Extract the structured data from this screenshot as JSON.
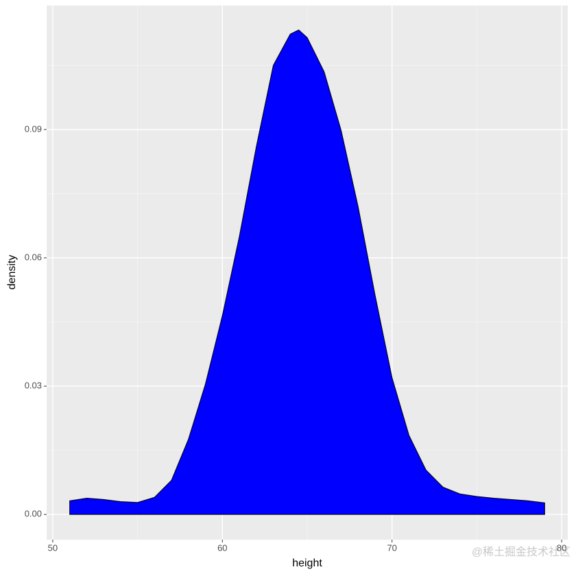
{
  "chart_data": {
    "type": "area",
    "x_label": "height",
    "y_label": "density",
    "x": [
      51,
      52,
      53,
      54,
      55,
      56,
      57,
      58,
      59,
      60,
      61,
      62,
      63,
      64,
      64.5,
      65,
      66,
      67,
      68,
      69,
      70,
      71,
      72,
      73,
      74,
      75,
      76,
      77,
      78,
      79
    ],
    "values": [
      0.0032,
      0.0038,
      0.0035,
      0.003,
      0.0028,
      0.004,
      0.008,
      0.0176,
      0.0305,
      0.0465,
      0.065,
      0.086,
      0.105,
      0.1123,
      0.1133,
      0.1115,
      0.1035,
      0.0898,
      0.072,
      0.0513,
      0.032,
      0.0185,
      0.0104,
      0.0064,
      0.0048,
      0.0042,
      0.0038,
      0.0035,
      0.0032,
      0.0027
    ],
    "color": "#0000ff",
    "outline": "#000000",
    "xlim": [
      49.64,
      80.36
    ],
    "xticks": [
      50,
      60,
      70,
      80
    ],
    "ylim": [
      -0.0059,
      0.119
    ],
    "yticks": [
      {
        "value": 0,
        "label": "0.00"
      },
      {
        "value": 0.03,
        "label": "0.03"
      },
      {
        "value": 0.06,
        "label": "0.06"
      },
      {
        "value": 0.09,
        "label": "0.09"
      }
    ],
    "grid": true,
    "watermark": "@稀土掘金技术社区"
  }
}
